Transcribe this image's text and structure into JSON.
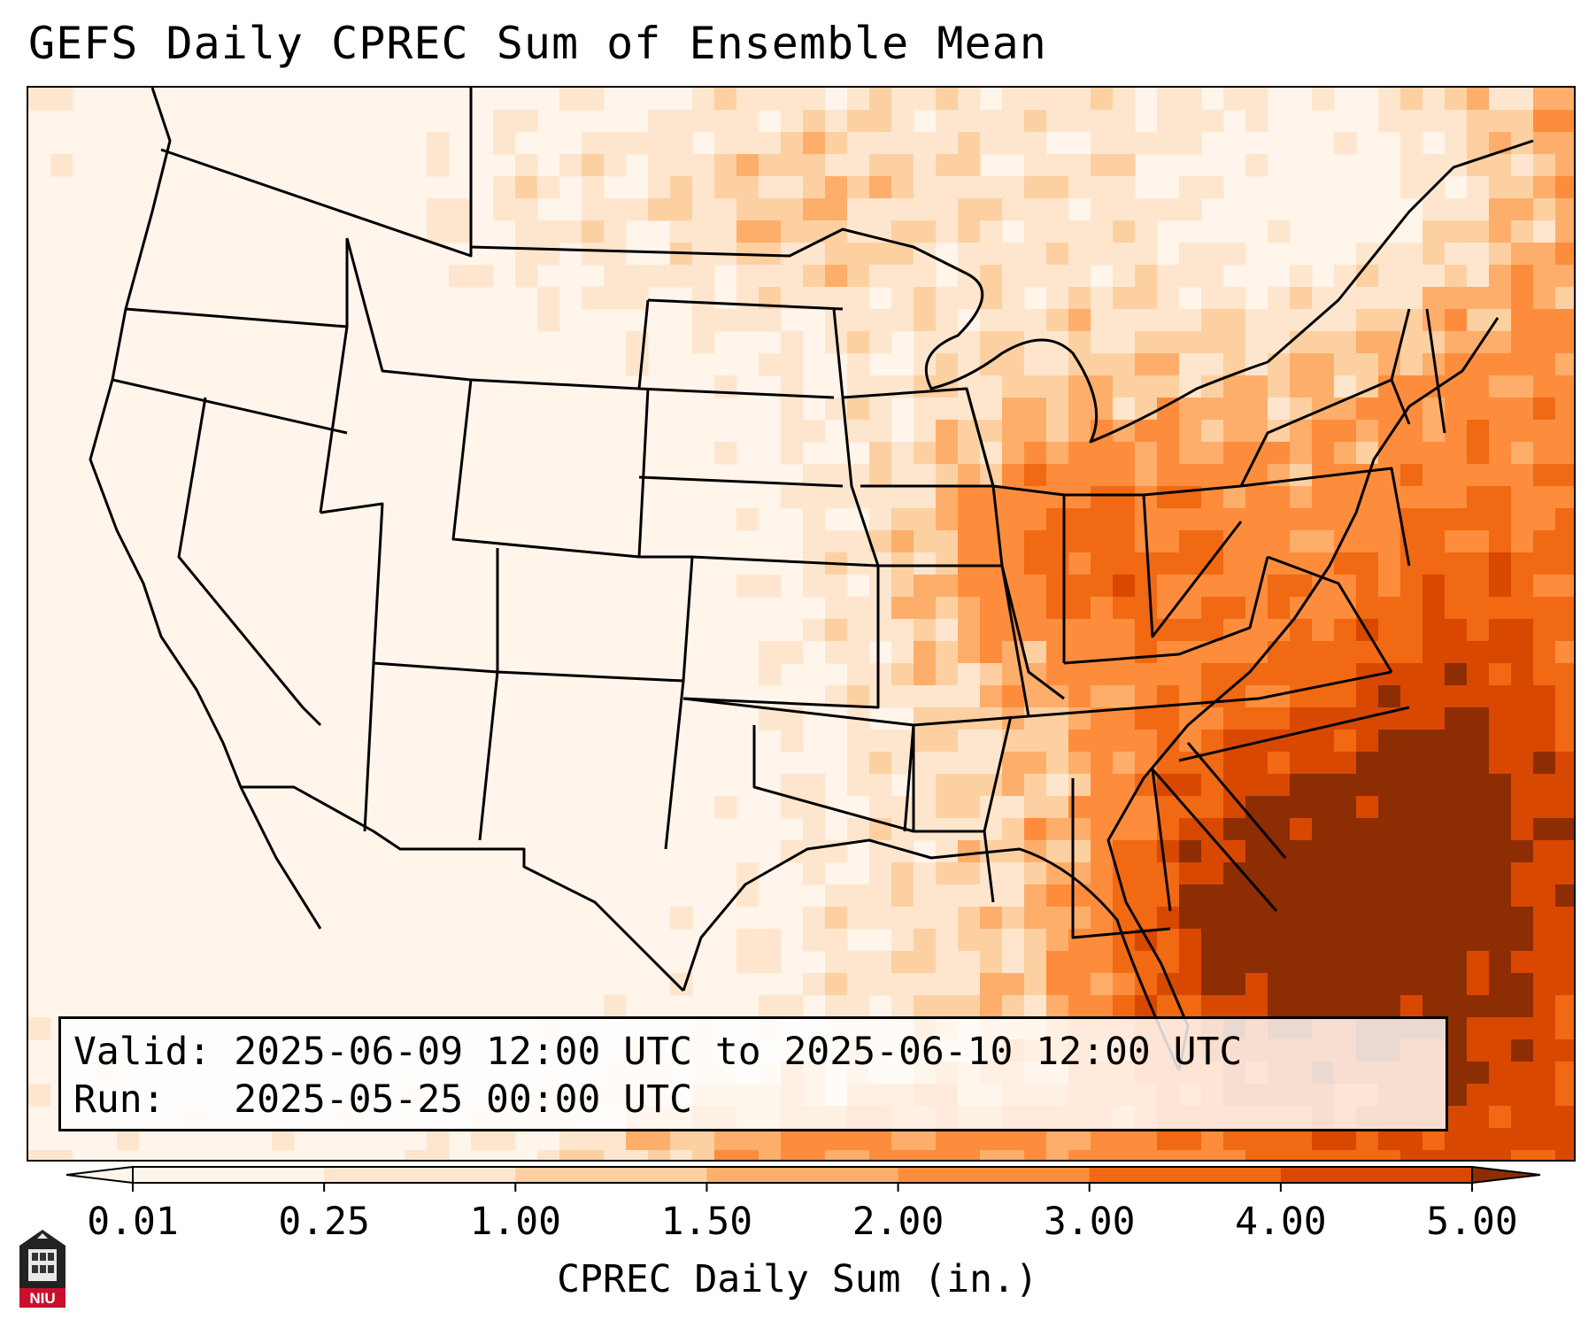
{
  "title": "GEFS Daily CPREC Sum of Ensemble Mean",
  "info": {
    "valid_line": "Valid: 2025-06-09 12:00 UTC to 2025-06-10 12:00 UTC",
    "run_line": "Run:   2025-05-25 00:00 UTC"
  },
  "colorbar": {
    "label": "CPREC Daily Sum (in.)",
    "ticks": [
      "0.01",
      "0.25",
      "1.00",
      "1.50",
      "2.00",
      "3.00",
      "4.00",
      "5.00"
    ],
    "colors": [
      "#fff5eb",
      "#fee6ce",
      "#fdd0a2",
      "#fdae6b",
      "#fd8d3c",
      "#f16913",
      "#d94801",
      "#8c2d04"
    ],
    "extend": "both"
  },
  "map": {
    "region": "Continental United States",
    "field": "CPREC daily sum, ensemble mean",
    "pattern": "dry west, wettest southeast, Gulf coast, Florida and the Ohio Valley"
  },
  "logo": {
    "text": "NIU",
    "icon": "niu-building-icon"
  }
}
